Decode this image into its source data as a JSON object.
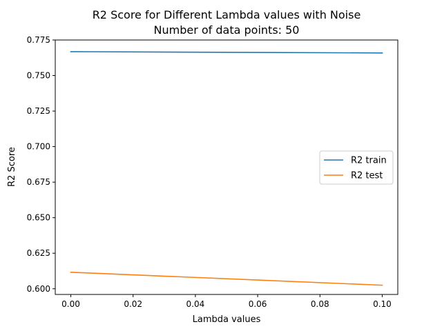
{
  "chart_data": {
    "type": "line",
    "title": "R2 Score for Different Lambda values with Noise",
    "subtitle": "Number of data points: 50",
    "xlabel": "Lambda values",
    "ylabel": "R2 Score",
    "xlim": [
      -0.005,
      0.105
    ],
    "ylim": [
      0.596,
      0.775
    ],
    "xticks": [
      0.0,
      0.02,
      0.04,
      0.06,
      0.08,
      0.1
    ],
    "xtick_labels": [
      "0.00",
      "0.02",
      "0.04",
      "0.06",
      "0.08",
      "0.10"
    ],
    "yticks": [
      0.6,
      0.625,
      0.65,
      0.675,
      0.7,
      0.725,
      0.75,
      0.775
    ],
    "ytick_labels": [
      "0.600",
      "0.625",
      "0.650",
      "0.675",
      "0.700",
      "0.725",
      "0.750",
      "0.775"
    ],
    "grid": false,
    "legend_position": "center-right",
    "x": [
      0.0,
      0.1
    ],
    "series": [
      {
        "name": "R2 train",
        "color": "#1f77b4",
        "values": [
          0.7668,
          0.7659
        ]
      },
      {
        "name": "R2 test",
        "color": "#ff7f0e",
        "values": [
          0.6116,
          0.6025
        ]
      }
    ]
  }
}
